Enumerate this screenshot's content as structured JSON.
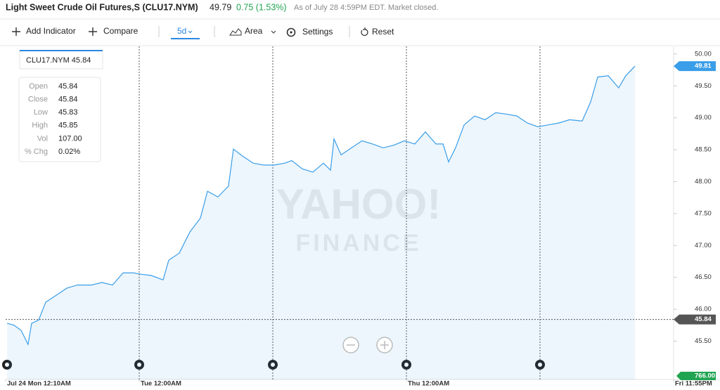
{
  "header": {
    "title": "Light Sweet Crude Oil Futures,S (CLU17.NYM)",
    "price": "49.79",
    "change": "0.75 (1.53%)",
    "status": "As of July 28 4:59PM EDT. Market closed."
  },
  "toolbar": {
    "add_indicator": "Add Indicator",
    "compare": "Compare",
    "range": "5d",
    "chart_type": "Area",
    "settings": "Settings",
    "reset": "Reset"
  },
  "tooltip": {
    "symbol_price": "CLU17.NYM 45.84",
    "rows": [
      [
        "Open",
        "45.84"
      ],
      [
        "Close",
        "45.84"
      ],
      [
        "Low",
        "45.83"
      ],
      [
        "High",
        "45.85"
      ],
      [
        "Vol",
        "107.00"
      ],
      [
        "% Chg",
        "0.02%"
      ]
    ]
  },
  "watermark": [
    "YAHOO!",
    "FINANCE"
  ],
  "chart_data": {
    "type": "area",
    "color": "#3a9ee8",
    "x": [
      0.011,
      0.063,
      0.116,
      0.168,
      0.195,
      0.247,
      0.3,
      0.379,
      0.458,
      0.537,
      0.642,
      0.721,
      0.8,
      0.879,
      0.958,
      1.011,
      1.089,
      1.179,
      1.221,
      1.3,
      1.379,
      1.458,
      1.511,
      1.589,
      1.668,
      1.705,
      1.774,
      1.853,
      1.932,
      2.011,
      2.089,
      2.142,
      2.221,
      2.3,
      2.379,
      2.432,
      2.458,
      2.511,
      2.589,
      2.668,
      2.747,
      2.826,
      2.905,
      2.984,
      3.063,
      3.142,
      3.221,
      3.274,
      3.316,
      3.368,
      3.432,
      3.511,
      3.589,
      3.668,
      3.747,
      3.826,
      3.905,
      3.984,
      4.063,
      4.142,
      4.221,
      4.316,
      4.379,
      4.432,
      4.511,
      4.589,
      4.642,
      4.711
    ],
    "values": [
      45.78,
      45.75,
      45.67,
      45.45,
      45.78,
      45.83,
      46.11,
      46.22,
      46.33,
      46.38,
      46.38,
      46.42,
      46.38,
      46.57,
      46.57,
      46.55,
      46.53,
      46.46,
      46.77,
      46.88,
      47.21,
      47.43,
      47.85,
      47.76,
      47.93,
      48.51,
      48.4,
      48.29,
      48.26,
      48.26,
      48.29,
      48.33,
      48.2,
      48.15,
      48.29,
      48.18,
      48.67,
      48.42,
      48.53,
      48.64,
      48.59,
      48.53,
      48.57,
      48.64,
      48.59,
      48.78,
      48.59,
      48.59,
      48.31,
      48.53,
      48.89,
      49.03,
      48.97,
      49.08,
      49.06,
      49.03,
      48.92,
      48.86,
      48.89,
      48.92,
      48.97,
      48.95,
      49.25,
      49.64,
      49.66,
      49.47,
      49.66,
      49.81
    ],
    "xlim": [
      0,
      5
    ],
    "ylim": [
      44.9,
      50.12
    ],
    "yticks": [
      {
        "value": 45.5,
        "label": "45.50"
      },
      {
        "value": 46,
        "label": "46.00"
      },
      {
        "value": 46.5,
        "label": "46.50"
      },
      {
        "value": 47,
        "label": "47.00"
      },
      {
        "value": 47.5,
        "label": "47.50"
      },
      {
        "value": 48,
        "label": "48.00"
      },
      {
        "value": 48.5,
        "label": "48.50"
      },
      {
        "value": 49,
        "label": "49.00"
      },
      {
        "value": 49.5,
        "label": "49.50"
      },
      {
        "value": 50,
        "label": "50.00"
      }
    ],
    "xticks": [
      {
        "value": 0,
        "label": "Jul 24 Mon 12:10AM"
      },
      {
        "value": 1,
        "label": "Tue 12:00AM"
      },
      {
        "value": 3,
        "label": "Thu 12:00AM"
      },
      {
        "value": 5,
        "label": "Fri 11:55PM"
      }
    ],
    "day_lines": [
      1,
      2,
      3,
      4
    ],
    "reference_line": 45.84,
    "volume_label": "766.00"
  }
}
